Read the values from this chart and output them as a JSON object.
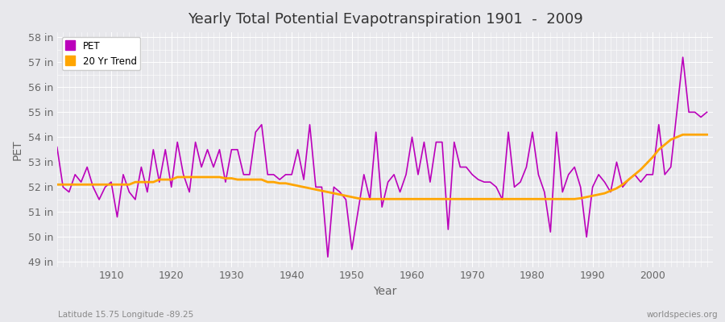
{
  "title": "Yearly Total Potential Evapotranspiration 1901  -  2009",
  "xlabel": "Year",
  "ylabel": "PET",
  "subtitle_left": "Latitude 15.75 Longitude -89.25",
  "subtitle_right": "worldspecies.org",
  "pet_color": "#bb00bb",
  "trend_color": "#ffa500",
  "background_color": "#e8e8ec",
  "ylim": [
    48.8,
    58.2
  ],
  "yticks": [
    49,
    50,
    51,
    52,
    53,
    54,
    55,
    56,
    57,
    58
  ],
  "ytick_labels": [
    "49 in",
    "50 in",
    "51 in",
    "52 in",
    "53 in",
    "54 in",
    "55 in",
    "56 in",
    "57 in",
    "58 in"
  ],
  "xlim": [
    1901,
    2010
  ],
  "xticks": [
    1910,
    1920,
    1930,
    1940,
    1950,
    1960,
    1970,
    1980,
    1990,
    2000
  ],
  "years": [
    1901,
    1902,
    1903,
    1904,
    1905,
    1906,
    1907,
    1908,
    1909,
    1910,
    1911,
    1912,
    1913,
    1914,
    1915,
    1916,
    1917,
    1918,
    1919,
    1920,
    1921,
    1922,
    1923,
    1924,
    1925,
    1926,
    1927,
    1928,
    1929,
    1930,
    1931,
    1932,
    1933,
    1934,
    1935,
    1936,
    1937,
    1938,
    1939,
    1940,
    1941,
    1942,
    1943,
    1944,
    1945,
    1946,
    1947,
    1948,
    1949,
    1950,
    1951,
    1952,
    1953,
    1954,
    1955,
    1956,
    1957,
    1958,
    1959,
    1960,
    1961,
    1962,
    1963,
    1964,
    1965,
    1966,
    1967,
    1968,
    1969,
    1970,
    1971,
    1972,
    1973,
    1974,
    1975,
    1976,
    1977,
    1978,
    1979,
    1980,
    1981,
    1982,
    1983,
    1984,
    1985,
    1986,
    1987,
    1988,
    1989,
    1990,
    1991,
    1992,
    1993,
    1994,
    1995,
    1996,
    1997,
    1998,
    1999,
    2000,
    2001,
    2002,
    2003,
    2004,
    2005,
    2006,
    2007,
    2008,
    2009
  ],
  "pet_values": [
    53.6,
    52.0,
    51.8,
    52.5,
    52.2,
    52.8,
    52.0,
    51.5,
    52.0,
    52.2,
    50.8,
    52.5,
    51.8,
    51.5,
    52.8,
    51.8,
    53.5,
    52.2,
    53.5,
    52.0,
    53.8,
    52.5,
    51.8,
    53.8,
    52.8,
    53.5,
    52.8,
    53.5,
    52.2,
    53.5,
    53.5,
    52.5,
    52.5,
    54.2,
    54.5,
    52.5,
    52.5,
    52.3,
    52.5,
    52.5,
    53.5,
    52.3,
    54.5,
    52.0,
    52.0,
    49.2,
    52.0,
    51.8,
    51.5,
    49.5,
    51.0,
    52.5,
    51.5,
    54.2,
    51.2,
    52.2,
    52.5,
    51.8,
    52.5,
    54.0,
    52.5,
    53.8,
    52.2,
    53.8,
    53.8,
    50.3,
    53.8,
    52.8,
    52.8,
    52.5,
    52.3,
    52.2,
    52.2,
    52.0,
    51.5,
    54.2,
    52.0,
    52.2,
    52.8,
    54.2,
    52.5,
    51.8,
    50.2,
    54.2,
    51.8,
    52.5,
    52.8,
    52.0,
    50.0,
    52.0,
    52.5,
    52.2,
    51.8,
    53.0,
    52.0,
    52.3,
    52.5,
    52.2,
    52.5,
    52.5,
    54.5,
    52.5,
    52.8,
    55.0,
    57.2,
    55.0,
    55.0,
    54.8,
    55.0
  ],
  "trend_values": [
    52.1,
    52.1,
    52.1,
    52.1,
    52.1,
    52.1,
    52.1,
    52.1,
    52.1,
    52.1,
    52.1,
    52.1,
    52.1,
    52.2,
    52.2,
    52.2,
    52.2,
    52.3,
    52.3,
    52.3,
    52.4,
    52.4,
    52.4,
    52.4,
    52.4,
    52.4,
    52.4,
    52.4,
    52.35,
    52.35,
    52.3,
    52.3,
    52.3,
    52.3,
    52.3,
    52.2,
    52.2,
    52.15,
    52.15,
    52.1,
    52.05,
    52.0,
    51.95,
    51.9,
    51.85,
    51.8,
    51.75,
    51.7,
    51.65,
    51.6,
    51.55,
    51.52,
    51.52,
    51.52,
    51.52,
    51.52,
    51.52,
    51.52,
    51.52,
    51.52,
    51.52,
    51.52,
    51.52,
    51.52,
    51.52,
    51.52,
    51.52,
    51.52,
    51.52,
    51.52,
    51.52,
    51.52,
    51.52,
    51.52,
    51.52,
    51.52,
    51.52,
    51.52,
    51.52,
    51.52,
    51.52,
    51.52,
    51.52,
    51.52,
    51.52,
    51.52,
    51.52,
    51.55,
    51.6,
    51.65,
    51.7,
    51.75,
    51.85,
    51.95,
    52.1,
    52.3,
    52.5,
    52.7,
    52.95,
    53.2,
    53.5,
    53.7,
    53.9,
    54.0,
    54.1,
    54.1,
    54.1,
    54.1,
    54.1
  ],
  "legend_pet_label": "PET",
  "legend_trend_label": "20 Yr Trend"
}
